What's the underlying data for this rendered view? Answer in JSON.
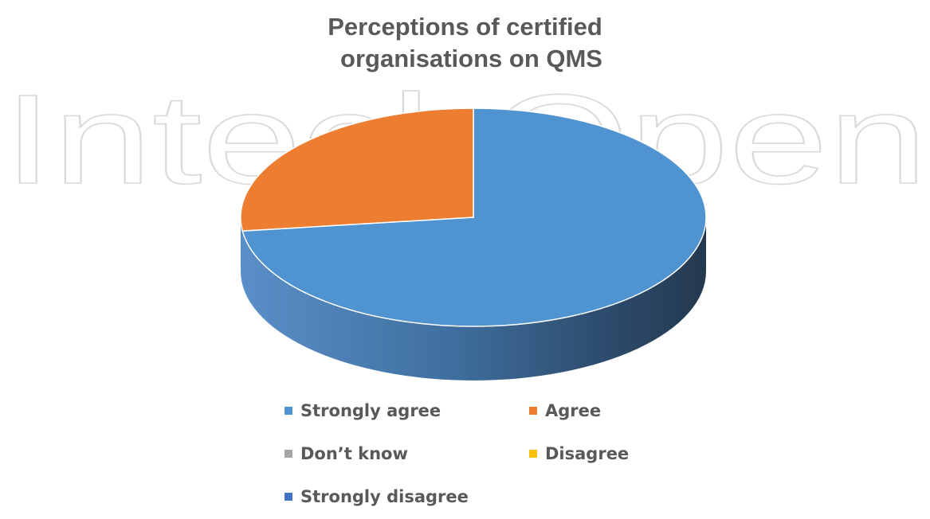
{
  "chart_data": {
    "type": "pie",
    "title_lines": [
      "Perceptions of certified",
      "organisations on QMS"
    ],
    "categories": [
      "Strongly agree",
      "Agree",
      "Don’t know",
      "Disagree",
      "Strongly disagree"
    ],
    "values": [
      73,
      27,
      0,
      0,
      0
    ],
    "colors": [
      "#4f93d0",
      "#ed7d31",
      "#a5a5a5",
      "#ffc000",
      "#4472c4"
    ],
    "legend_position": "bottom",
    "style": "3d-pie"
  },
  "watermark": {
    "text": "IntechOpen",
    "color": "#d9d9d9"
  }
}
